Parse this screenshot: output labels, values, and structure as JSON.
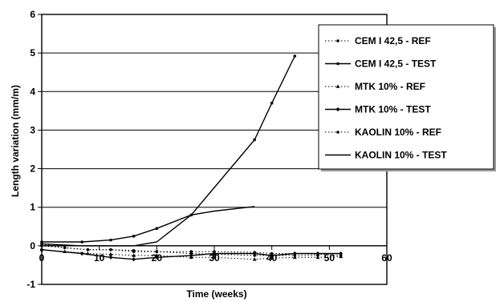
{
  "chart_data": {
    "type": "line",
    "title": "",
    "xlabel": "Time (weeks)",
    "ylabel": "Length variation (mm/m)",
    "xlim": [
      0,
      60
    ],
    "ylim": [
      -1,
      6
    ],
    "x_ticks": [
      "0",
      "10",
      "20",
      "30",
      "40",
      "50",
      "60"
    ],
    "y_ticks": [
      "-1",
      "0",
      "1",
      "2",
      "3",
      "4",
      "5",
      "6"
    ],
    "grid": "horizontal",
    "legend_position": "right",
    "series": [
      {
        "name": "CEM I 42,5 - REF",
        "style": "dotted",
        "marker": "dot",
        "x": [
          0,
          4,
          8,
          12,
          16,
          20,
          26,
          30,
          37,
          40,
          44,
          48,
          52
        ],
        "y": [
          0.05,
          -0.05,
          -0.1,
          -0.1,
          -0.12,
          -0.15,
          -0.15,
          -0.15,
          -0.17,
          -0.2,
          -0.2,
          -0.22,
          -0.25
        ]
      },
      {
        "name": "CEM I 42,5 - TEST",
        "style": "solid",
        "marker": "dot",
        "x": [
          0,
          7,
          12,
          16,
          20,
          26,
          37,
          40,
          44
        ],
        "y": [
          0.1,
          0.1,
          0.15,
          0.25,
          0.45,
          0.8,
          2.75,
          3.7,
          4.92
        ]
      },
      {
        "name": "MTK 10% - REF",
        "style": "dotted",
        "marker": "triangle",
        "x": [
          0,
          4,
          8,
          12,
          16,
          20,
          26,
          30,
          37,
          40,
          44,
          48,
          52
        ],
        "y": [
          -0.1,
          -0.15,
          -0.2,
          -0.22,
          -0.25,
          -0.25,
          -0.3,
          -0.3,
          -0.35,
          -0.32,
          -0.3,
          -0.3,
          -0.28
        ]
      },
      {
        "name": "MTK 10% - TEST",
        "style": "solid",
        "marker": "diamond",
        "x": [
          0,
          7,
          12,
          16,
          20,
          26,
          30,
          37,
          40,
          44,
          48,
          52
        ],
        "y": [
          -0.1,
          -0.2,
          -0.3,
          -0.35,
          -0.3,
          -0.25,
          -0.2,
          -0.2,
          -0.25,
          -0.2,
          -0.2,
          -0.2
        ]
      },
      {
        "name": "KAOLIN 10% - REF",
        "style": "dotted",
        "marker": "dot",
        "x": [
          0,
          4,
          8,
          12,
          16,
          20,
          26,
          30,
          37,
          40,
          44,
          48
        ],
        "y": [
          0.0,
          -0.05,
          -0.1,
          -0.1,
          -0.15,
          -0.15,
          -0.2,
          -0.22,
          -0.25,
          -0.25,
          -0.25,
          -0.25
        ]
      },
      {
        "name": "KAOLIN 10% - TEST",
        "style": "solid",
        "marker": "none",
        "x": [
          0,
          7,
          12,
          16,
          20,
          26,
          30,
          37
        ],
        "y": [
          0.05,
          0.0,
          0.0,
          0.0,
          0.1,
          0.8,
          0.9,
          1.02
        ]
      }
    ]
  }
}
